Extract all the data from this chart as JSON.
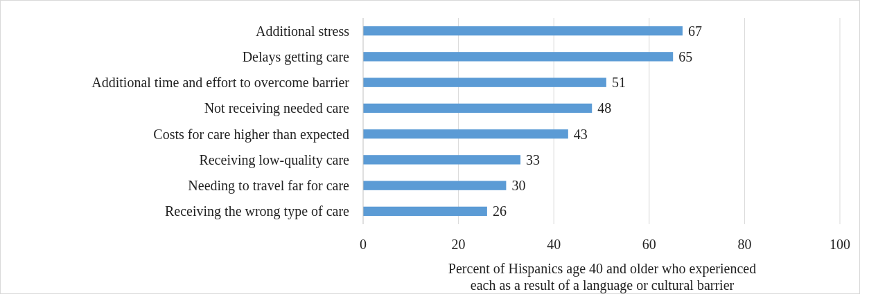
{
  "chart_data": {
    "type": "bar",
    "orientation": "horizontal",
    "categories": [
      "Additional stress",
      "Delays getting care",
      "Additional time and effort to overcome barrier",
      "Not receiving needed care",
      "Costs for care higher than expected",
      "Receiving low-quality care",
      "Needing to travel far for care",
      "Receiving the wrong type of care"
    ],
    "values": [
      67,
      65,
      51,
      48,
      43,
      33,
      30,
      26
    ],
    "color": "#5b9bd5",
    "xlim": [
      0,
      100
    ],
    "xticks": [
      0,
      20,
      40,
      60,
      80,
      100
    ],
    "xlabel": "Percent of Hispanics age 40 and older who experienced\neach as a result of a language or cultural barrier",
    "grid": "x",
    "data_labels": true
  }
}
